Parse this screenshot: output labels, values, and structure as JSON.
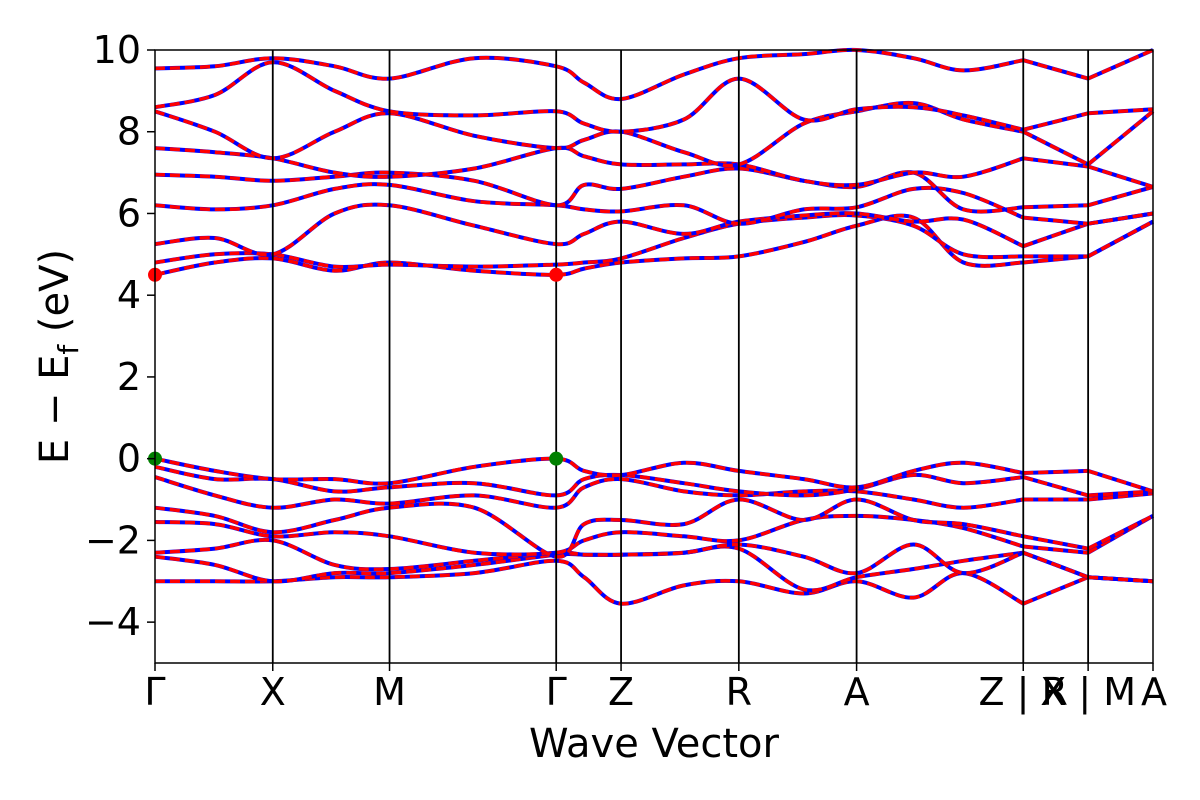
{
  "chart_data": {
    "type": "line",
    "title": "",
    "xlabel": "Wave Vector",
    "ylabel": "E − E_f (eV)",
    "ylabel_main": "E − E",
    "ylabel_sub": "f",
    "ylabel_unit": " (eV)",
    "ylim": [
      -5,
      10
    ],
    "yticks": [
      -4,
      -2,
      0,
      2,
      4,
      6,
      8,
      10
    ],
    "ytick_labels": [
      "−4",
      "−2",
      "0",
      "2",
      "4",
      "6",
      "8",
      "10"
    ],
    "xlim": [
      0,
      10
    ],
    "grid": false,
    "legend": "none",
    "kpath_ticks": [
      {
        "label": "Γ",
        "x": 0.0
      },
      {
        "label": "X",
        "x": 1.18
      },
      {
        "label": "M",
        "x": 2.35
      },
      {
        "label": "Γ",
        "x": 4.02
      },
      {
        "label": "Z",
        "x": 4.67
      },
      {
        "label": "R",
        "x": 5.85
      },
      {
        "label": "A",
        "x": 7.03
      },
      {
        "label": "Z | R",
        "x": 8.7
      },
      {
        "label": "X | M",
        "x": 9.35
      },
      {
        "label": "A",
        "x": 10.0
      }
    ],
    "segment_breaks": [
      8.7,
      9.35
    ],
    "colors": {
      "band_main": "#ff0000",
      "band_dash": "#0000ff",
      "vbm": "#008000",
      "cbm": "#ff0000",
      "divider": "#000000"
    },
    "markers": [
      {
        "type": "cbm",
        "x": 0.0,
        "y": 4.5
      },
      {
        "type": "cbm",
        "x": 4.02,
        "y": 4.5
      },
      {
        "type": "vbm",
        "x": 0.0,
        "y": 0.0
      },
      {
        "type": "vbm",
        "x": 4.02,
        "y": 0.0
      }
    ],
    "bands": [
      [
        [
          0,
          -3.0
        ],
        [
          0.6,
          -3.0
        ],
        [
          1.18,
          -3.0
        ],
        [
          1.8,
          -2.9
        ],
        [
          2.35,
          -2.9
        ],
        [
          3.2,
          -2.8
        ],
        [
          4.02,
          -2.5
        ],
        [
          4.3,
          -2.9
        ],
        [
          4.67,
          -3.55
        ],
        [
          5.3,
          -3.1
        ],
        [
          5.85,
          -3.0
        ],
        [
          6.5,
          -3.3
        ],
        [
          7.03,
          -3.0
        ],
        [
          7.6,
          -3.4
        ],
        [
          8.1,
          -2.8
        ],
        [
          8.7,
          -3.55
        ],
        [
          9.35,
          -2.9
        ],
        [
          10.0,
          -3.0
        ]
      ],
      [
        [
          0,
          -2.4
        ],
        [
          0.6,
          -2.6
        ],
        [
          1.18,
          -3.0
        ],
        [
          1.8,
          -2.8
        ],
        [
          2.35,
          -2.8
        ],
        [
          3.2,
          -2.6
        ],
        [
          4.02,
          -2.35
        ],
        [
          4.3,
          -2.35
        ],
        [
          4.67,
          -2.35
        ],
        [
          5.3,
          -2.3
        ],
        [
          5.85,
          -2.2
        ],
        [
          6.5,
          -3.2
        ],
        [
          7.03,
          -2.9
        ],
        [
          7.6,
          -2.7
        ],
        [
          8.1,
          -2.5
        ],
        [
          8.7,
          -2.3
        ],
        [
          9.35,
          -2.9
        ],
        [
          10.0,
          -3.0
        ]
      ],
      [
        [
          0,
          -2.3
        ],
        [
          0.6,
          -2.2
        ],
        [
          1.18,
          -2.0
        ],
        [
          1.8,
          -2.6
        ],
        [
          2.35,
          -2.7
        ],
        [
          3.2,
          -2.5
        ],
        [
          4.02,
          -2.3
        ],
        [
          4.3,
          -2.35
        ],
        [
          4.67,
          -2.35
        ],
        [
          5.3,
          -2.3
        ],
        [
          5.85,
          -2.1
        ],
        [
          6.5,
          -2.4
        ],
        [
          7.03,
          -2.8
        ],
        [
          7.6,
          -2.1
        ],
        [
          8.1,
          -2.8
        ],
        [
          8.7,
          -2.3
        ],
        [
          9.35,
          -2.9
        ],
        [
          10.0,
          -3.0
        ]
      ],
      [
        [
          0,
          -1.55
        ],
        [
          0.6,
          -1.6
        ],
        [
          1.18,
          -1.9
        ],
        [
          1.8,
          -1.8
        ],
        [
          2.35,
          -1.9
        ],
        [
          3.2,
          -2.3
        ],
        [
          4.02,
          -2.3
        ],
        [
          4.3,
          -2.0
        ],
        [
          4.67,
          -1.8
        ],
        [
          5.3,
          -1.9
        ],
        [
          5.85,
          -2.0
        ],
        [
          6.5,
          -1.5
        ],
        [
          7.03,
          -1.4
        ],
        [
          7.6,
          -1.5
        ],
        [
          8.1,
          -1.7
        ],
        [
          8.7,
          -2.15
        ],
        [
          9.35,
          -2.3
        ],
        [
          10.0,
          -1.4
        ]
      ],
      [
        [
          0,
          -1.2
        ],
        [
          0.6,
          -1.4
        ],
        [
          1.18,
          -1.8
        ],
        [
          1.8,
          -1.5
        ],
        [
          2.35,
          -1.2
        ],
        [
          3.2,
          -1.2
        ],
        [
          4.02,
          -2.4
        ],
        [
          4.3,
          -1.6
        ],
        [
          4.67,
          -1.5
        ],
        [
          5.3,
          -1.6
        ],
        [
          5.85,
          -1.0
        ],
        [
          6.5,
          -1.5
        ],
        [
          7.03,
          -1.0
        ],
        [
          7.6,
          -1.5
        ],
        [
          8.1,
          -1.6
        ],
        [
          8.7,
          -1.9
        ],
        [
          9.35,
          -2.2
        ],
        [
          10.0,
          -1.4
        ]
      ],
      [
        [
          0,
          -0.45
        ],
        [
          0.6,
          -0.9
        ],
        [
          1.18,
          -1.2
        ],
        [
          1.8,
          -1.0
        ],
        [
          2.35,
          -1.1
        ],
        [
          3.2,
          -0.9
        ],
        [
          4.02,
          -1.2
        ],
        [
          4.3,
          -0.7
        ],
        [
          4.67,
          -0.5
        ],
        [
          5.3,
          -0.8
        ],
        [
          5.85,
          -0.9
        ],
        [
          6.5,
          -0.8
        ],
        [
          7.03,
          -0.8
        ],
        [
          7.6,
          -1.0
        ],
        [
          8.1,
          -1.2
        ],
        [
          8.7,
          -1.0
        ],
        [
          9.35,
          -1.0
        ],
        [
          10.0,
          -0.85
        ]
      ],
      [
        [
          0,
          -0.2
        ],
        [
          0.6,
          -0.5
        ],
        [
          1.18,
          -0.5
        ],
        [
          1.8,
          -0.8
        ],
        [
          2.35,
          -0.7
        ],
        [
          3.2,
          -0.6
        ],
        [
          4.02,
          -0.9
        ],
        [
          4.3,
          -0.5
        ],
        [
          4.67,
          -0.4
        ],
        [
          5.3,
          -0.6
        ],
        [
          5.85,
          -0.8
        ],
        [
          6.5,
          -0.9
        ],
        [
          7.03,
          -0.75
        ],
        [
          7.6,
          -0.4
        ],
        [
          8.1,
          -0.6
        ],
        [
          8.7,
          -0.45
        ],
        [
          9.35,
          -0.9
        ],
        [
          10.0,
          -0.8
        ]
      ],
      [
        [
          0,
          0.0
        ],
        [
          0.6,
          -0.3
        ],
        [
          1.18,
          -0.5
        ],
        [
          1.8,
          -0.5
        ],
        [
          2.35,
          -0.6
        ],
        [
          3.2,
          -0.2
        ],
        [
          4.02,
          0.0
        ],
        [
          4.3,
          -0.3
        ],
        [
          4.67,
          -0.4
        ],
        [
          5.3,
          -0.1
        ],
        [
          5.85,
          -0.3
        ],
        [
          6.5,
          -0.5
        ],
        [
          7.03,
          -0.7
        ],
        [
          7.6,
          -0.3
        ],
        [
          8.1,
          -0.1
        ],
        [
          8.7,
          -0.35
        ],
        [
          9.35,
          -0.3
        ],
        [
          10.0,
          -0.8
        ]
      ],
      [
        [
          0,
          4.5
        ],
        [
          0.6,
          4.8
        ],
        [
          1.18,
          4.9
        ],
        [
          1.8,
          4.6
        ],
        [
          2.35,
          4.8
        ],
        [
          3.2,
          4.6
        ],
        [
          4.02,
          4.5
        ],
        [
          4.3,
          4.65
        ],
        [
          4.67,
          4.8
        ],
        [
          5.3,
          4.9
        ],
        [
          5.85,
          4.95
        ],
        [
          6.5,
          5.3
        ],
        [
          7.03,
          5.7
        ],
        [
          7.6,
          5.9
        ],
        [
          8.1,
          4.8
        ],
        [
          8.7,
          4.8
        ],
        [
          9.35,
          4.95
        ],
        [
          10.0,
          5.8
        ]
      ],
      [
        [
          0,
          4.8
        ],
        [
          0.6,
          5.0
        ],
        [
          1.18,
          5.0
        ],
        [
          1.8,
          4.7
        ],
        [
          2.35,
          4.75
        ],
        [
          3.2,
          4.7
        ],
        [
          4.02,
          4.75
        ],
        [
          4.3,
          4.8
        ],
        [
          4.67,
          4.9
        ],
        [
          5.3,
          5.4
        ],
        [
          5.85,
          5.75
        ],
        [
          6.5,
          5.9
        ],
        [
          7.03,
          5.95
        ],
        [
          7.6,
          5.7
        ],
        [
          8.1,
          5.0
        ],
        [
          8.7,
          4.95
        ],
        [
          9.35,
          4.95
        ],
        [
          10.0,
          5.8
        ]
      ],
      [
        [
          0,
          5.25
        ],
        [
          0.6,
          5.4
        ],
        [
          1.18,
          5.0
        ],
        [
          1.8,
          6.0
        ],
        [
          2.35,
          6.2
        ],
        [
          3.2,
          5.7
        ],
        [
          4.02,
          5.25
        ],
        [
          4.3,
          5.5
        ],
        [
          4.67,
          5.8
        ],
        [
          5.3,
          5.5
        ],
        [
          5.85,
          5.8
        ],
        [
          6.5,
          5.95
        ],
        [
          7.03,
          6.0
        ],
        [
          7.6,
          5.8
        ],
        [
          8.1,
          5.85
        ],
        [
          8.7,
          5.2
        ],
        [
          9.35,
          5.75
        ],
        [
          10.0,
          6.0
        ]
      ],
      [
        [
          0,
          6.2
        ],
        [
          0.6,
          6.1
        ],
        [
          1.18,
          6.2
        ],
        [
          1.8,
          6.6
        ],
        [
          2.35,
          6.7
        ],
        [
          3.2,
          6.3
        ],
        [
          4.02,
          6.2
        ],
        [
          4.3,
          6.1
        ],
        [
          4.67,
          6.05
        ],
        [
          5.3,
          6.2
        ],
        [
          5.85,
          5.75
        ],
        [
          6.5,
          6.1
        ],
        [
          7.03,
          6.15
        ],
        [
          7.6,
          6.6
        ],
        [
          8.1,
          6.5
        ],
        [
          8.7,
          5.9
        ],
        [
          9.35,
          5.75
        ],
        [
          10.0,
          6.0
        ]
      ],
      [
        [
          0,
          6.95
        ],
        [
          0.6,
          6.9
        ],
        [
          1.18,
          6.8
        ],
        [
          1.8,
          6.9
        ],
        [
          2.35,
          7.0
        ],
        [
          3.2,
          6.8
        ],
        [
          4.02,
          6.2
        ],
        [
          4.3,
          6.7
        ],
        [
          4.67,
          6.6
        ],
        [
          5.3,
          6.9
        ],
        [
          5.85,
          7.1
        ],
        [
          6.5,
          6.8
        ],
        [
          7.03,
          6.65
        ],
        [
          7.6,
          7.0
        ],
        [
          8.1,
          6.1
        ],
        [
          8.7,
          6.15
        ],
        [
          9.35,
          6.2
        ],
        [
          10.0,
          6.65
        ]
      ],
      [
        [
          0,
          7.6
        ],
        [
          0.6,
          7.5
        ],
        [
          1.18,
          7.35
        ],
        [
          1.8,
          7.0
        ],
        [
          2.35,
          6.9
        ],
        [
          3.2,
          7.1
        ],
        [
          4.02,
          7.6
        ],
        [
          4.3,
          7.4
        ],
        [
          4.67,
          7.2
        ],
        [
          5.3,
          7.2
        ],
        [
          5.85,
          7.2
        ],
        [
          6.5,
          6.8
        ],
        [
          7.03,
          6.7
        ],
        [
          7.6,
          7.0
        ],
        [
          8.1,
          6.9
        ],
        [
          8.7,
          7.35
        ],
        [
          9.35,
          7.15
        ],
        [
          10.0,
          6.65
        ]
      ],
      [
        [
          0,
          8.5
        ],
        [
          0.6,
          8.0
        ],
        [
          1.18,
          7.35
        ],
        [
          1.8,
          8.0
        ],
        [
          2.35,
          8.45
        ],
        [
          3.2,
          7.9
        ],
        [
          4.02,
          7.6
        ],
        [
          4.3,
          7.8
        ],
        [
          4.67,
          8.0
        ],
        [
          5.3,
          7.5
        ],
        [
          5.85,
          7.2
        ],
        [
          6.5,
          8.2
        ],
        [
          7.03,
          8.5
        ],
        [
          7.6,
          8.7
        ],
        [
          8.1,
          8.3
        ],
        [
          8.7,
          8.0
        ],
        [
          9.35,
          7.2
        ],
        [
          10.0,
          8.5
        ]
      ],
      [
        [
          0,
          8.6
        ],
        [
          0.6,
          8.9
        ],
        [
          1.18,
          9.7
        ],
        [
          1.8,
          9.0
        ],
        [
          2.35,
          8.5
        ],
        [
          3.2,
          8.4
        ],
        [
          4.02,
          8.5
        ],
        [
          4.3,
          8.2
        ],
        [
          4.67,
          8.0
        ],
        [
          5.3,
          8.3
        ],
        [
          5.85,
          9.3
        ],
        [
          6.5,
          8.3
        ],
        [
          7.03,
          8.55
        ],
        [
          7.6,
          8.6
        ],
        [
          8.1,
          8.4
        ],
        [
          8.7,
          8.05
        ],
        [
          9.35,
          8.45
        ],
        [
          10.0,
          8.55
        ]
      ],
      [
        [
          0,
          9.55
        ],
        [
          0.6,
          9.6
        ],
        [
          1.18,
          9.8
        ],
        [
          1.8,
          9.6
        ],
        [
          2.35,
          9.3
        ],
        [
          3.2,
          9.8
        ],
        [
          4.02,
          9.6
        ],
        [
          4.3,
          9.2
        ],
        [
          4.67,
          8.8
        ],
        [
          5.3,
          9.4
        ],
        [
          5.85,
          9.8
        ],
        [
          6.5,
          9.9
        ],
        [
          7.03,
          10.0
        ],
        [
          7.6,
          9.8
        ],
        [
          8.1,
          9.5
        ],
        [
          8.7,
          9.75
        ],
        [
          9.35,
          9.3
        ],
        [
          10.0,
          10.0
        ]
      ]
    ]
  }
}
